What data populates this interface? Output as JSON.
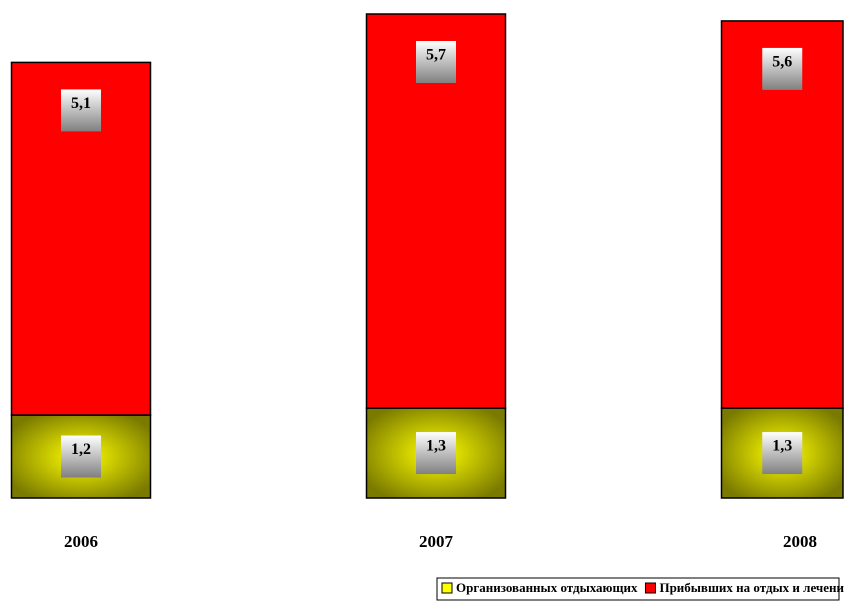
{
  "chart_data": {
    "type": "stacked_bar",
    "categories": [
      "2006",
      "2007",
      "2008"
    ],
    "series": [
      {
        "name": "Организованных отдыхающих",
        "color": "#ffff00",
        "values": [
          1.2,
          1.3,
          1.3
        ],
        "value_labels": [
          "1,2",
          "1,3",
          "1,3"
        ]
      },
      {
        "name": "Прибывших на отдых и лечение, всего",
        "color": "#ff0000",
        "values": [
          5.1,
          5.7,
          5.6
        ],
        "value_labels": [
          "5,1",
          "5,7",
          "5,6"
        ]
      }
    ],
    "legend": "bottom"
  }
}
